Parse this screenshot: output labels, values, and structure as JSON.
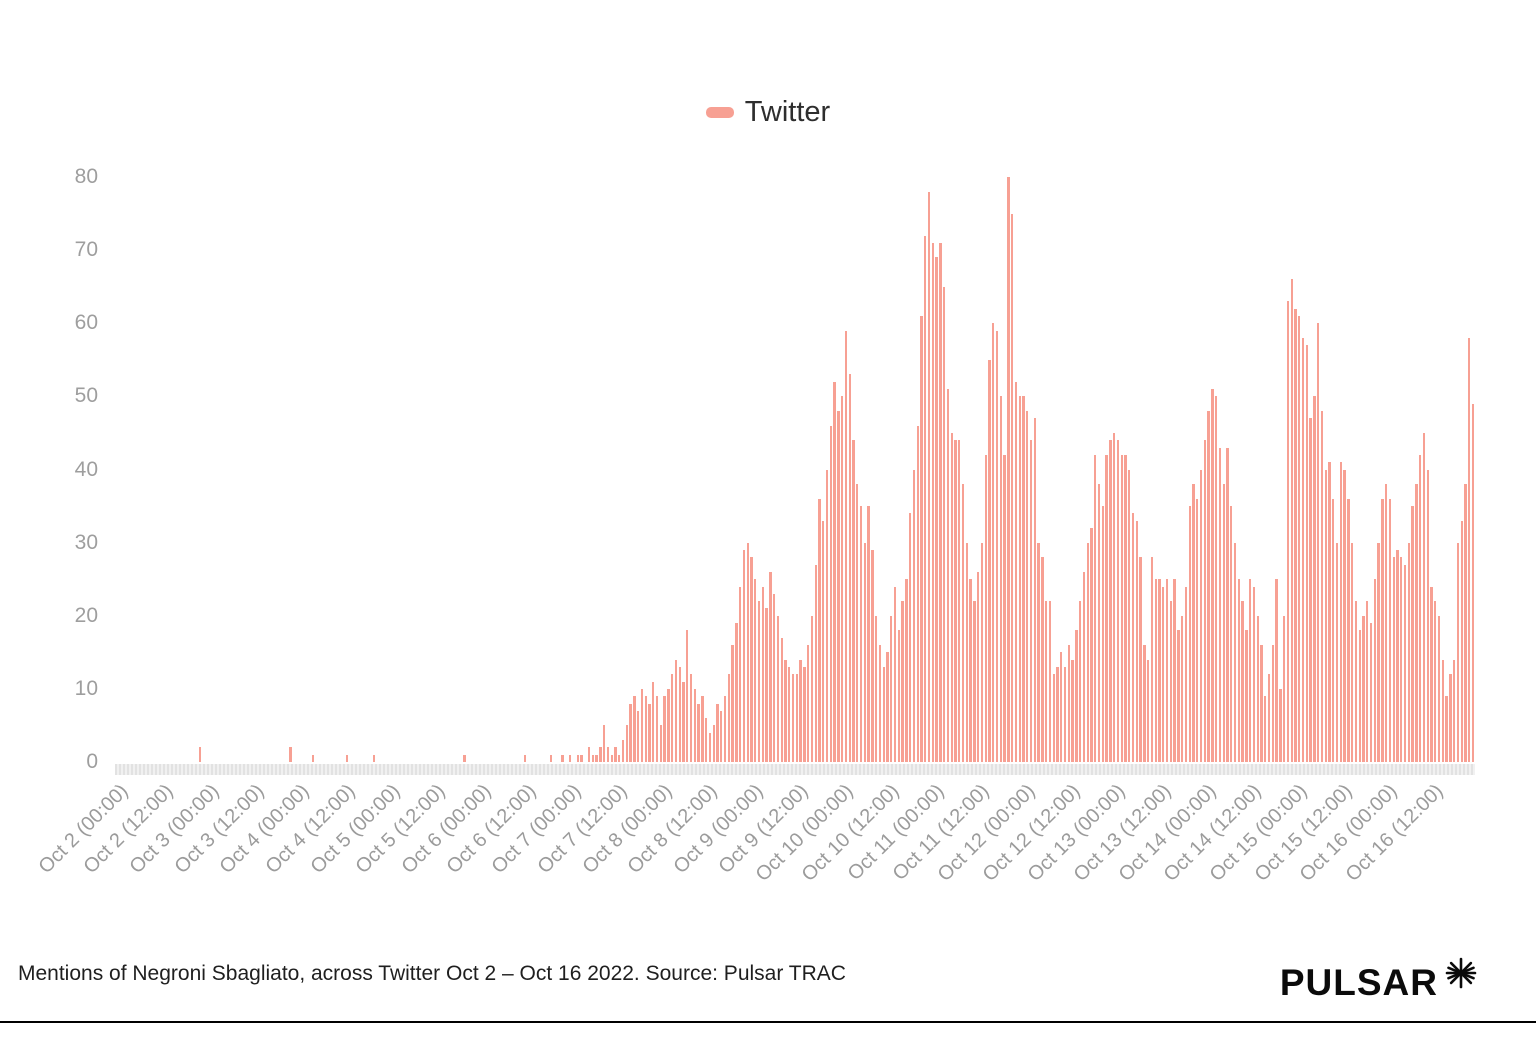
{
  "legend": {
    "label": "Twitter",
    "color": "#F7A093"
  },
  "footer": {
    "caption": "Mentions of Negroni Sbagliato, across Twitter Oct 2 – Oct 16 2022. Source: Pulsar TRAC",
    "brand": "PULSAR"
  },
  "chart_data": {
    "type": "bar",
    "title": "",
    "xlabel": "",
    "ylabel": "",
    "ylim": [
      0,
      80
    ],
    "yticks": [
      0,
      10,
      20,
      30,
      40,
      50,
      60,
      70,
      80
    ],
    "grid": false,
    "legend_position": "top-center",
    "bar_color": "#F7A093",
    "x_tick_every": 12,
    "x_tick_labels": [
      "Oct 2 (00:00)",
      "Oct 2 (12:00)",
      "Oct 3 (00:00)",
      "Oct 3 (12:00)",
      "Oct 4 (00:00)",
      "Oct 4 (12:00)",
      "Oct 5 (00:00)",
      "Oct 5 (12:00)",
      "Oct 6 (00:00)",
      "Oct 6 (12:00)",
      "Oct 7 (00:00)",
      "Oct 7 (12:00)",
      "Oct 8 (00:00)",
      "Oct 8 (12:00)",
      "Oct 9 (00:00)",
      "Oct 9 (12:00)",
      "Oct 10 (00:00)",
      "Oct 10 (12:00)",
      "Oct 11 (00:00)",
      "Oct 11 (12:00)",
      "Oct 12 (00:00)",
      "Oct 12 (12:00)",
      "Oct 13 (00:00)",
      "Oct 13 (12:00)",
      "Oct 14 (00:00)",
      "Oct 14 (12:00)",
      "Oct 15 (00:00)",
      "Oct 15 (12:00)",
      "Oct 16 (00:00)",
      "Oct 16 (12:00)"
    ],
    "series": [
      {
        "name": "Twitter",
        "values": [
          0,
          0,
          0,
          0,
          0,
          0,
          0,
          0,
          0,
          0,
          0,
          0,
          0,
          0,
          0,
          0,
          0,
          0,
          0,
          0,
          0,
          0,
          2,
          0,
          0,
          0,
          0,
          0,
          0,
          0,
          0,
          0,
          0,
          0,
          0,
          0,
          0,
          0,
          0,
          0,
          0,
          0,
          0,
          0,
          0,
          0,
          2,
          0,
          0,
          0,
          0,
          0,
          1,
          0,
          0,
          0,
          0,
          0,
          0,
          0,
          0,
          1,
          0,
          0,
          0,
          0,
          0,
          0,
          1,
          0,
          0,
          0,
          0,
          0,
          0,
          0,
          0,
          0,
          0,
          0,
          0,
          0,
          0,
          0,
          0,
          0,
          0,
          0,
          0,
          0,
          0,
          0,
          1,
          0,
          0,
          0,
          0,
          0,
          0,
          0,
          0,
          0,
          0,
          0,
          0,
          0,
          0,
          0,
          1,
          0,
          0,
          0,
          0,
          0,
          0,
          1,
          0,
          0,
          1,
          0,
          1,
          0,
          1,
          1,
          0,
          2,
          1,
          1,
          2,
          5,
          2,
          1,
          2,
          1,
          3,
          5,
          8,
          9,
          7,
          10,
          9,
          8,
          11,
          9,
          5,
          9,
          10,
          12,
          14,
          13,
          11,
          18,
          12,
          10,
          8,
          9,
          6,
          4,
          5,
          8,
          7,
          9,
          12,
          16,
          19,
          24,
          29,
          30,
          28,
          25,
          22,
          24,
          21,
          26,
          23,
          20,
          17,
          14,
          13,
          12,
          12,
          14,
          13,
          16,
          20,
          27,
          36,
          33,
          40,
          46,
          52,
          48,
          50,
          59,
          53,
          44,
          38,
          35,
          30,
          35,
          29,
          20,
          16,
          13,
          15,
          20,
          24,
          18,
          22,
          25,
          34,
          40,
          46,
          61,
          72,
          78,
          71,
          69,
          71,
          65,
          51,
          45,
          44,
          44,
          38,
          30,
          25,
          22,
          26,
          30,
          42,
          55,
          60,
          59,
          50,
          42,
          80,
          75,
          52,
          50,
          50,
          48,
          44,
          47,
          30,
          28,
          22,
          22,
          12,
          13,
          15,
          13,
          16,
          14,
          18,
          22,
          26,
          30,
          32,
          42,
          38,
          35,
          42,
          44,
          45,
          44,
          42,
          42,
          40,
          34,
          33,
          28,
          16,
          14,
          28,
          25,
          25,
          24,
          25,
          22,
          25,
          18,
          20,
          24,
          35,
          38,
          36,
          40,
          44,
          48,
          51,
          50,
          43,
          38,
          43,
          35,
          30,
          25,
          22,
          18,
          25,
          24,
          20,
          16,
          9,
          12,
          16,
          25,
          10,
          20,
          63,
          66,
          62,
          61,
          58,
          57,
          47,
          50,
          60,
          48,
          40,
          41,
          36,
          30,
          41,
          40,
          36,
          30,
          22,
          18,
          20,
          22,
          19,
          25,
          30,
          36,
          38,
          36,
          28,
          29,
          28,
          27,
          30,
          35,
          38,
          42,
          45,
          40,
          24,
          22,
          20,
          14,
          9,
          12,
          14,
          30,
          33,
          38,
          58,
          49
        ]
      }
    ]
  }
}
